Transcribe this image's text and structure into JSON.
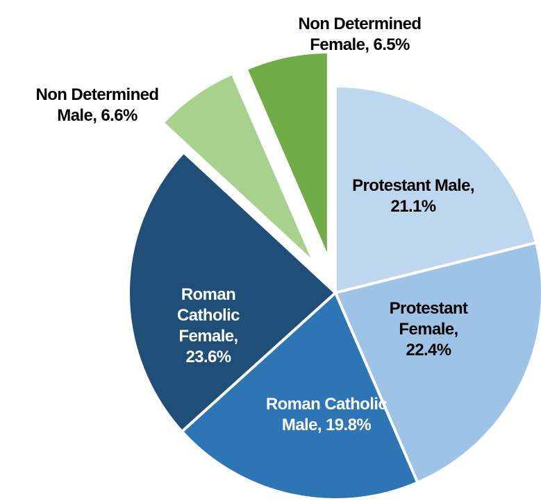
{
  "chart_data": {
    "type": "pie",
    "labels": [
      "Protestant Male, 21.1%",
      "Protestant Female, 22.4%",
      "Roman Catholic Male, 19.8%",
      "Roman Catholic Female, 23.6%",
      "Non Determined Male, 6.6%",
      "Non Determined Female, 6.5%"
    ],
    "values": [
      21.1,
      22.4,
      19.8,
      23.6,
      6.6,
      6.5
    ],
    "colors": [
      "#bdd7ee",
      "#9dc3e6",
      "#2e75b6",
      "#1f4e79",
      "#a9d18e",
      "#70ad47"
    ],
    "label_colors": [
      "#000000",
      "#000000",
      "#ffffff",
      "#ffffff",
      "#000000",
      "#000000"
    ]
  }
}
